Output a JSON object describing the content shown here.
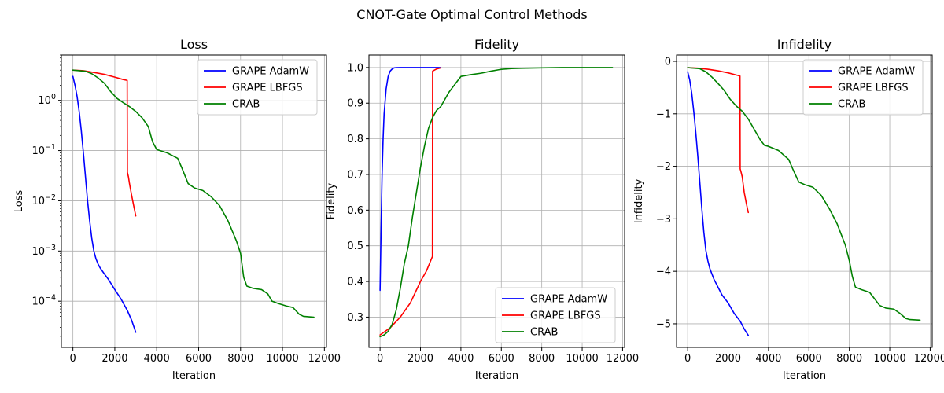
{
  "figure": {
    "title": "CNOT-Gate Optimal Control Methods"
  },
  "colors": {
    "grape_adamw": "#0000ff",
    "grape_lbfgs": "#ff0000",
    "crab": "#008000"
  },
  "chart_data": [
    {
      "type": "line",
      "title": "Loss",
      "xlabel": "Iteration",
      "ylabel": "Loss",
      "yscale": "log",
      "xlim": [
        -550,
        12100
      ],
      "ylim": [
        1.2e-05,
        8
      ],
      "xticks": [
        0,
        2000,
        4000,
        6000,
        8000,
        10000,
        12000
      ],
      "xtick_labels": [
        "0",
        "2000",
        "4000",
        "6000",
        "8000",
        "10000",
        "12000"
      ],
      "yticks": [
        0.0001,
        0.001,
        0.01,
        0.1,
        1
      ],
      "ytick_labels": [
        [
          "10",
          "−4"
        ],
        [
          "10",
          "−3"
        ],
        [
          "10",
          "−2"
        ],
        [
          "10",
          "−1"
        ],
        [
          "10",
          "0"
        ]
      ],
      "grid": true,
      "legend": "upper right",
      "series": [
        {
          "name": "GRAPE AdamW",
          "color_key": "grape_adamw",
          "x": [
            0,
            100,
            200,
            300,
            400,
            500,
            600,
            700,
            800,
            900,
            1000,
            1100,
            1200,
            1300,
            1500,
            1700,
            2000,
            2300,
            2600,
            2800,
            3000
          ],
          "y": [
            3.0,
            2.0,
            1.2,
            0.6,
            0.25,
            0.09,
            0.03,
            0.01,
            0.004,
            0.0018,
            0.001,
            0.0007,
            0.00055,
            0.00046,
            0.00035,
            0.00027,
            0.00017,
            0.00011,
            6.5e-05,
            4.2e-05,
            2.4e-05
          ]
        },
        {
          "name": "GRAPE LBFGS",
          "color_key": "grape_lbfgs",
          "x": [
            0,
            500,
            1000,
            1500,
            2000,
            2400,
            2590,
            2600,
            2650,
            2700,
            2800,
            2900,
            3000
          ],
          "y": [
            4.0,
            3.9,
            3.6,
            3.3,
            2.9,
            2.6,
            2.5,
            0.037,
            0.03,
            0.022,
            0.013,
            0.008,
            0.005
          ]
        },
        {
          "name": "CRAB",
          "color_key": "crab",
          "x": [
            0,
            300,
            600,
            900,
            1200,
            1500,
            1800,
            2100,
            2400,
            2700,
            3000,
            3300,
            3600,
            3800,
            4000,
            4500,
            5000,
            5200,
            5500,
            5800,
            6200,
            6600,
            7000,
            7400,
            7800,
            8000,
            8150,
            8300,
            8600,
            9000,
            9300,
            9500,
            9800,
            10200,
            10500,
            10800,
            11000,
            11500
          ],
          "y": [
            4.0,
            3.9,
            3.8,
            3.4,
            2.8,
            2.2,
            1.5,
            1.1,
            0.9,
            0.75,
            0.6,
            0.45,
            0.3,
            0.15,
            0.105,
            0.09,
            0.07,
            0.045,
            0.022,
            0.018,
            0.016,
            0.012,
            0.008,
            0.004,
            0.0016,
            0.0009,
            0.0003,
            0.0002,
            0.00018,
            0.00017,
            0.00014,
            0.0001,
            9e-05,
            8e-05,
            7.5e-05,
            5.5e-05,
            5e-05,
            4.8e-05
          ]
        }
      ]
    },
    {
      "type": "line",
      "title": "Fidelity",
      "xlabel": "Iteration",
      "ylabel": "Fidelity",
      "yscale": "linear",
      "xlim": [
        -550,
        12100
      ],
      "ylim": [
        0.215,
        1.035
      ],
      "xticks": [
        0,
        2000,
        4000,
        6000,
        8000,
        10000,
        12000
      ],
      "xtick_labels": [
        "0",
        "2000",
        "4000",
        "6000",
        "8000",
        "10000",
        "12000"
      ],
      "yticks": [
        0.3,
        0.4,
        0.5,
        0.6,
        0.7,
        0.8,
        0.9,
        1.0
      ],
      "ytick_labels": [
        [
          "0.3"
        ],
        [
          "0.4"
        ],
        [
          "0.5"
        ],
        [
          "0.6"
        ],
        [
          "0.7"
        ],
        [
          "0.8"
        ],
        [
          "0.9"
        ],
        [
          "1.0"
        ]
      ],
      "grid": true,
      "legend": "lower right",
      "series": [
        {
          "name": "GRAPE AdamW",
          "color_key": "grape_adamw",
          "x": [
            0,
            50,
            100,
            150,
            200,
            300,
            400,
            500,
            600,
            700,
            800,
            1000,
            1500,
            2000,
            3000
          ],
          "y": [
            0.375,
            0.55,
            0.7,
            0.8,
            0.87,
            0.94,
            0.975,
            0.99,
            0.996,
            0.999,
            0.9995,
            0.9998,
            0.9999,
            1.0,
            1.0
          ]
        },
        {
          "name": "GRAPE LBFGS",
          "color_key": "grape_lbfgs",
          "x": [
            0,
            500,
            1000,
            1500,
            2000,
            2300,
            2590,
            2600,
            2700,
            2800,
            3000
          ],
          "y": [
            0.25,
            0.27,
            0.3,
            0.34,
            0.4,
            0.43,
            0.47,
            0.99,
            0.993,
            0.996,
            0.999
          ]
        },
        {
          "name": "CRAB",
          "color_key": "crab",
          "x": [
            0,
            200,
            400,
            600,
            800,
            1000,
            1200,
            1400,
            1600,
            1800,
            2000,
            2200,
            2400,
            2600,
            2800,
            3000,
            3200,
            3400,
            3600,
            3800,
            4000,
            4500,
            5000,
            5500,
            6000,
            6500,
            7000,
            8000,
            9000,
            10000,
            11500
          ],
          "y": [
            0.245,
            0.25,
            0.26,
            0.28,
            0.32,
            0.38,
            0.45,
            0.5,
            0.58,
            0.65,
            0.72,
            0.78,
            0.83,
            0.86,
            0.88,
            0.89,
            0.91,
            0.93,
            0.945,
            0.96,
            0.975,
            0.98,
            0.984,
            0.99,
            0.995,
            0.997,
            0.998,
            0.999,
            0.9998,
            0.9999,
            0.99995
          ]
        }
      ]
    },
    {
      "type": "line",
      "title": "Infidelity",
      "xlabel": "Iteration",
      "ylabel": "Infidelity",
      "yscale": "linear",
      "xlim": [
        -550,
        12100
      ],
      "ylim": [
        -5.45,
        0.12
      ],
      "xticks": [
        0,
        2000,
        4000,
        6000,
        8000,
        10000,
        12000
      ],
      "xtick_labels": [
        "0",
        "2000",
        "4000",
        "6000",
        "8000",
        "10000",
        "12000"
      ],
      "yticks": [
        -5,
        -4,
        -3,
        -2,
        -1,
        0
      ],
      "ytick_labels": [
        [
          "−5"
        ],
        [
          "−4"
        ],
        [
          "−3"
        ],
        [
          "−2"
        ],
        [
          "−1"
        ],
        [
          "0"
        ]
      ],
      "grid": true,
      "legend": "upper right",
      "series": [
        {
          "name": "GRAPE AdamW",
          "color_key": "grape_adamw",
          "x": [
            0,
            100,
            200,
            300,
            400,
            500,
            600,
            700,
            800,
            900,
            1000,
            1100,
            1200,
            1300,
            1500,
            1700,
            2000,
            2300,
            2600,
            2800,
            3000
          ],
          "y": [
            -0.2,
            -0.35,
            -0.6,
            -0.95,
            -1.35,
            -1.8,
            -2.3,
            -2.8,
            -3.25,
            -3.6,
            -3.8,
            -3.95,
            -4.05,
            -4.15,
            -4.3,
            -4.45,
            -4.6,
            -4.8,
            -4.95,
            -5.1,
            -5.22
          ]
        },
        {
          "name": "GRAPE LBFGS",
          "color_key": "grape_lbfgs",
          "x": [
            0,
            500,
            1000,
            1500,
            2000,
            2400,
            2590,
            2600,
            2650,
            2700,
            2800,
            2900,
            3000
          ],
          "y": [
            -0.12,
            -0.13,
            -0.15,
            -0.18,
            -0.22,
            -0.26,
            -0.28,
            -2.05,
            -2.12,
            -2.2,
            -2.5,
            -2.7,
            -2.88
          ]
        },
        {
          "name": "CRAB",
          "color_key": "crab",
          "x": [
            0,
            300,
            600,
            900,
            1200,
            1500,
            1800,
            2100,
            2400,
            2700,
            3000,
            3300,
            3600,
            3800,
            4000,
            4500,
            5000,
            5200,
            5500,
            5800,
            6200,
            6600,
            7000,
            7400,
            7800,
            8000,
            8150,
            8300,
            8600,
            9000,
            9300,
            9500,
            9800,
            10200,
            10500,
            10800,
            11000,
            11500
          ],
          "y": [
            -0.12,
            -0.13,
            -0.14,
            -0.2,
            -0.3,
            -0.42,
            -0.55,
            -0.72,
            -0.85,
            -0.95,
            -1.1,
            -1.3,
            -1.5,
            -1.6,
            -1.62,
            -1.7,
            -1.87,
            -2.05,
            -2.3,
            -2.35,
            -2.4,
            -2.55,
            -2.8,
            -3.1,
            -3.5,
            -3.8,
            -4.1,
            -4.3,
            -4.35,
            -4.4,
            -4.55,
            -4.65,
            -4.7,
            -4.72,
            -4.8,
            -4.9,
            -4.92,
            -4.93
          ]
        }
      ]
    }
  ]
}
